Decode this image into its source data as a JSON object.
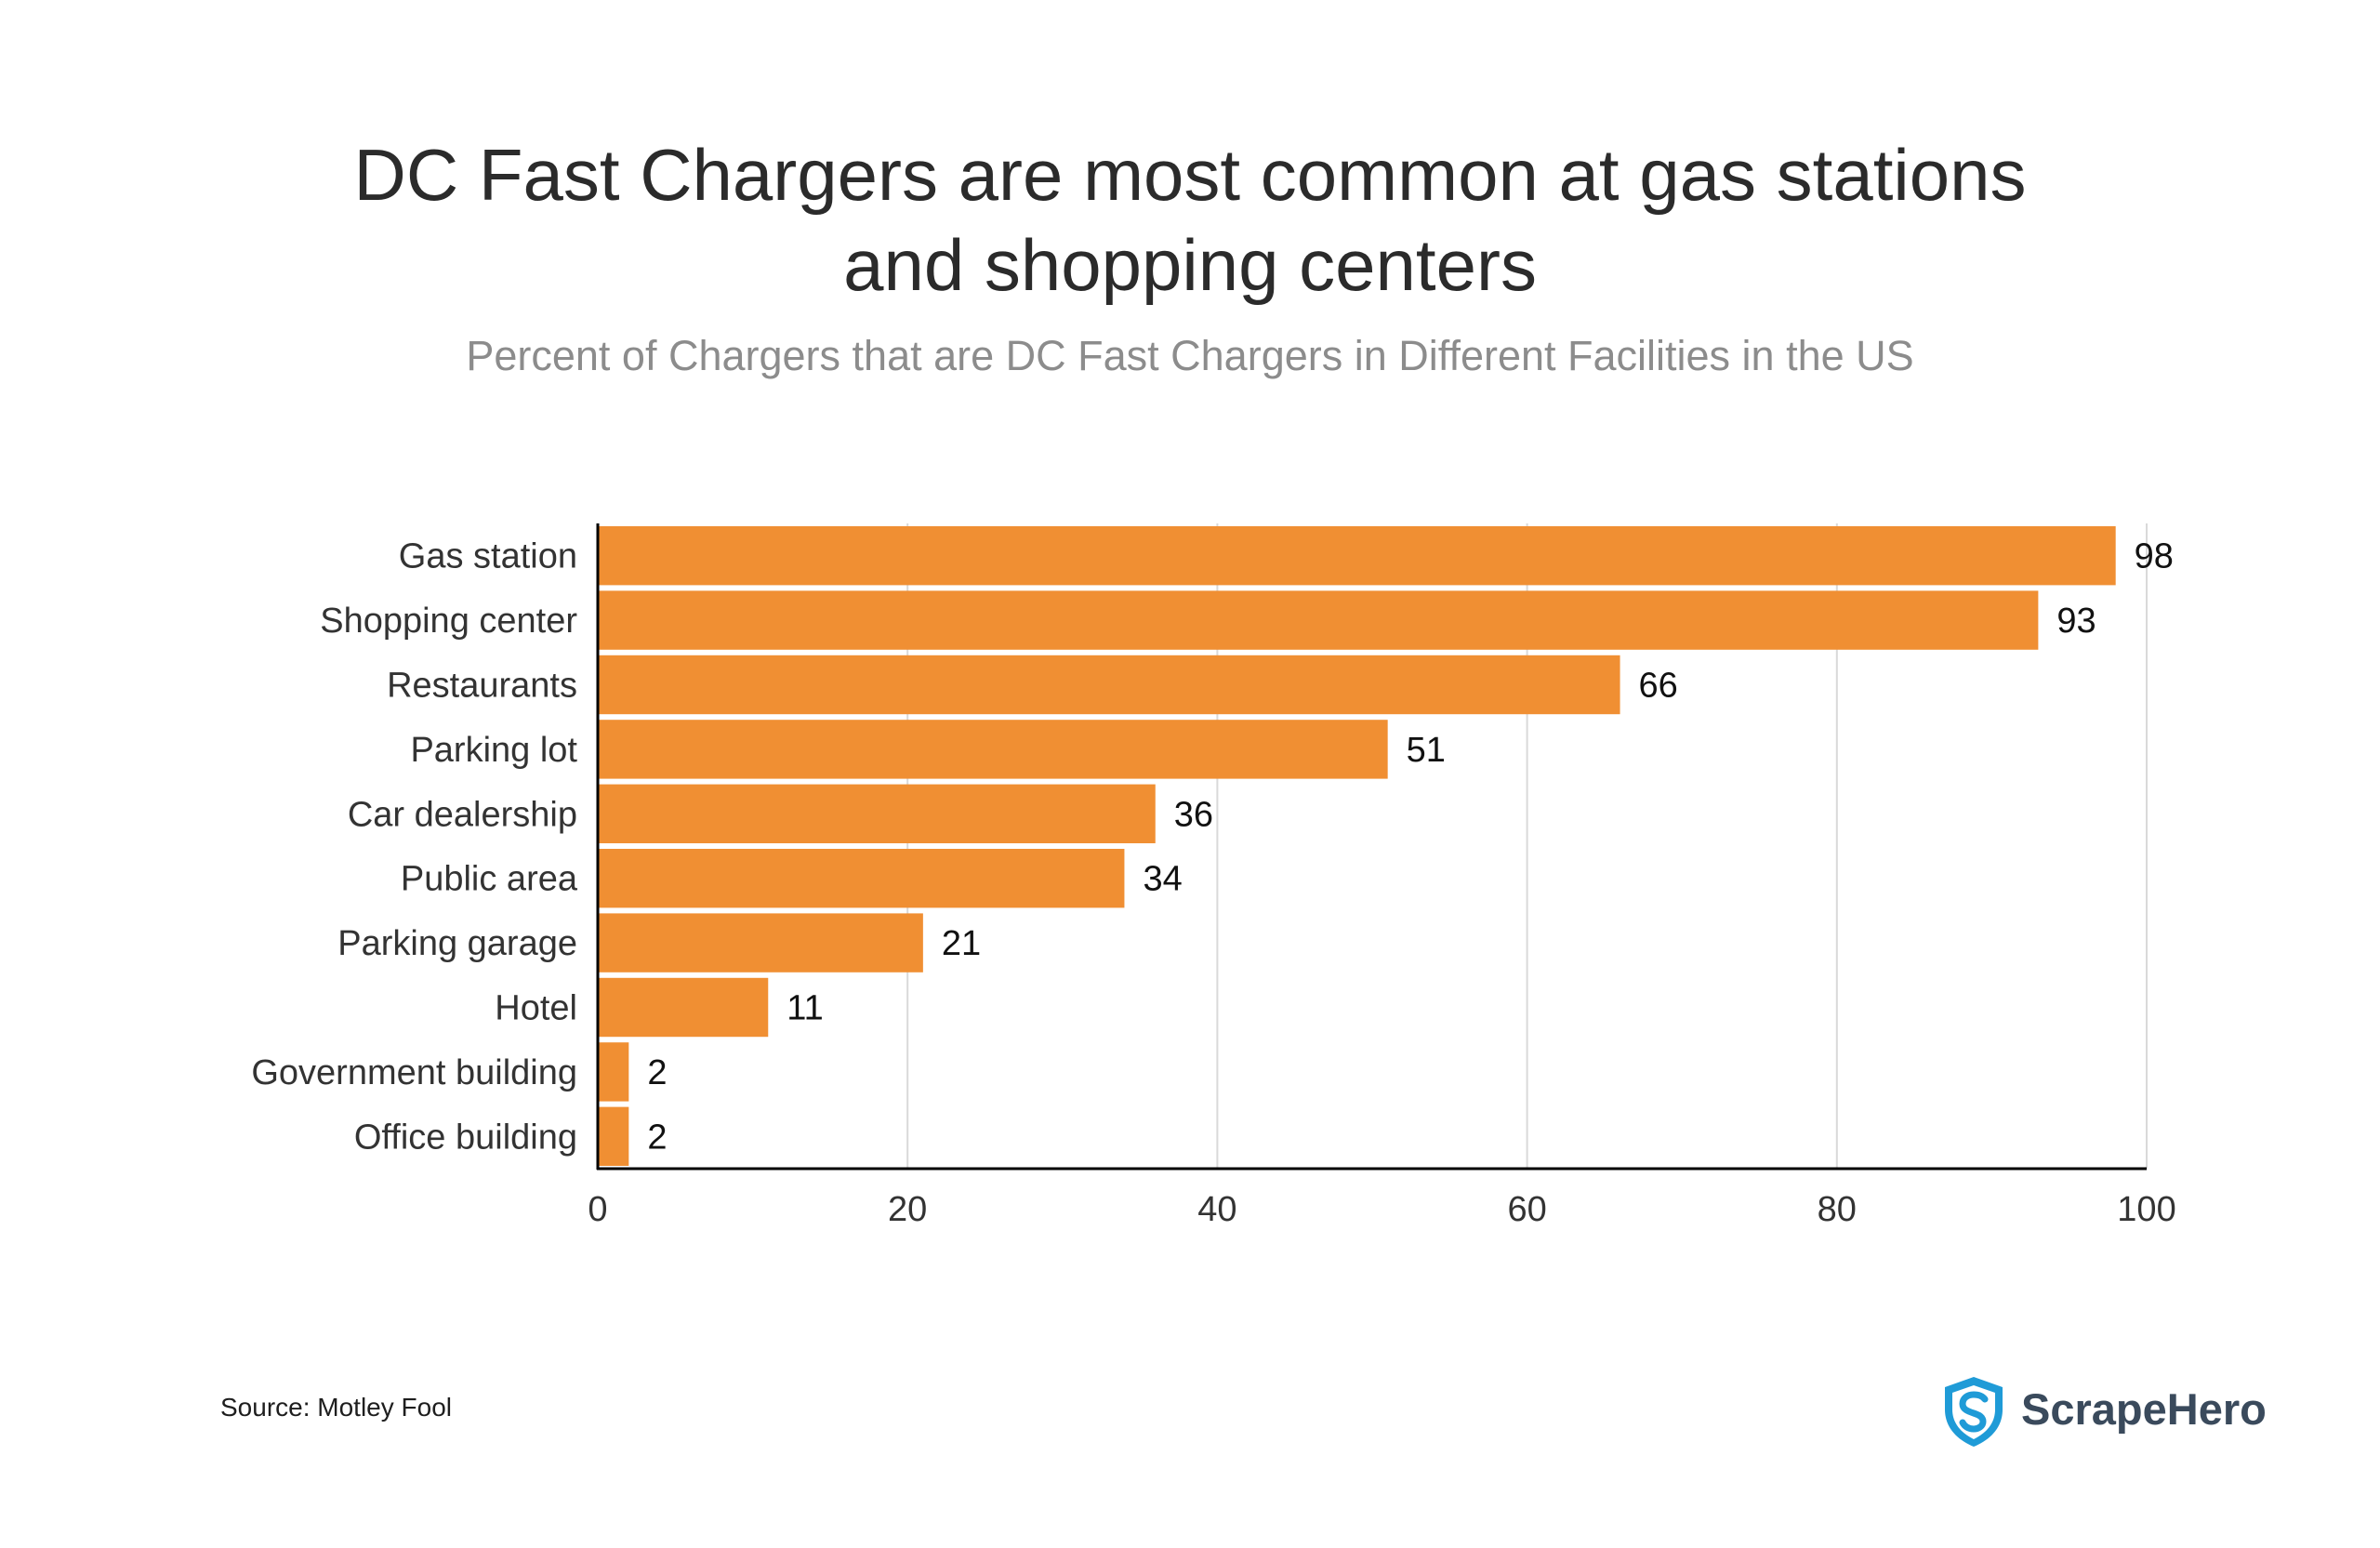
{
  "chart_data": {
    "type": "bar",
    "orientation": "horizontal",
    "title_lines": [
      "DC Fast Chargers are most common at gas stations",
      "and shopping centers"
    ],
    "subtitle": "Percent of Chargers that are DC Fast Chargers in Different Facilities in the US",
    "categories": [
      "Gas station",
      "Shopping center",
      "Restaurants",
      "Parking lot",
      "Car dealership",
      "Public area",
      "Parking garage",
      "Hotel",
      "Government building",
      "Office building"
    ],
    "values": [
      98,
      93,
      66,
      51,
      36,
      34,
      21,
      11,
      2,
      2
    ],
    "xlim": [
      0,
      100
    ],
    "xticks": [
      0,
      20,
      40,
      60,
      80,
      100
    ],
    "xlabel": "",
    "ylabel": "",
    "grid": "vertical",
    "bar_color": "#f08f33",
    "gridline_color": "#d9d9d9",
    "axis_color": "#000000"
  },
  "footer": {
    "source": "Source: Motley Fool",
    "brand_name": "ScrapeHero",
    "brand_icon": "shield-s-icon",
    "brand_color": "#1f9bd7"
  }
}
